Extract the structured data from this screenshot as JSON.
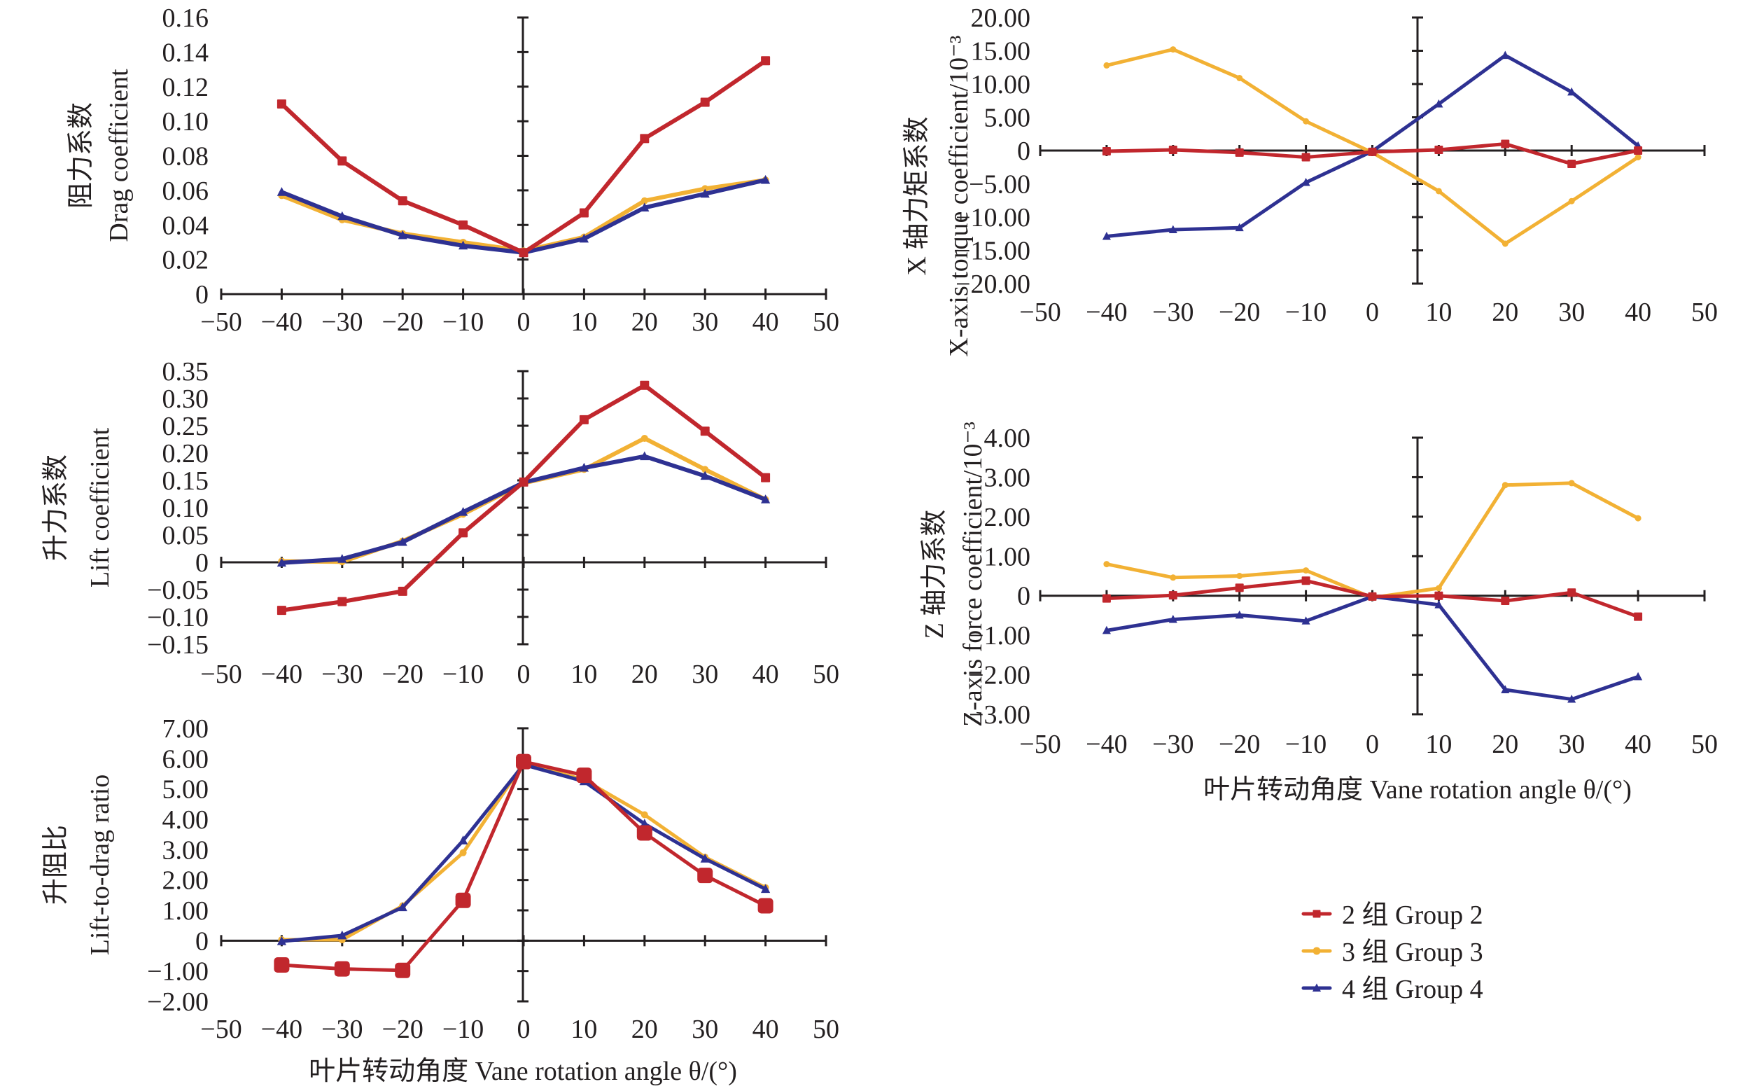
{
  "figure": {
    "x_axis_title": "叶片转动角度 Vane rotation angle θ/(°)",
    "legend": [
      {
        "label": "2 组 Group 2",
        "color": "#c1272d",
        "marker": "square"
      },
      {
        "label": "3 组 Group 3",
        "color": "#f2b134",
        "marker": "circle"
      },
      {
        "label": "4 组 Group 4",
        "color": "#2e3192",
        "marker": "triangle"
      }
    ]
  },
  "chart_data": [
    {
      "id": "drag",
      "type": "line",
      "ylabel_cn": "阻力系数",
      "ylabel_en": "Drag coefficient",
      "xlabel": "叶片转动角度 Vane rotation angle θ/(°)",
      "x": [
        -40,
        -30,
        -20,
        -10,
        0,
        10,
        20,
        30,
        40
      ],
      "xlim": [
        -50,
        50
      ],
      "xticks": [
        "−50",
        "−40",
        "−30",
        "−20",
        "−10",
        "0",
        "10",
        "20",
        "30",
        "40",
        "50"
      ],
      "ylim": [
        0,
        0.16
      ],
      "yticks": [
        0,
        0.02,
        0.04,
        0.06,
        0.08,
        0.1,
        0.12,
        0.14,
        0.16
      ],
      "ytick_labels": [
        "0",
        "0.02",
        "0.04",
        "0.06",
        "0.08",
        "0.10",
        "0.12",
        "0.14",
        "0.16"
      ],
      "series": [
        {
          "name": "2 组 Group 2",
          "values": [
            0.11,
            0.077,
            0.054,
            0.04,
            0.024,
            0.047,
            0.09,
            0.111,
            0.135
          ]
        },
        {
          "name": "3 组 Group 3",
          "values": [
            0.057,
            0.043,
            0.035,
            0.03,
            0.025,
            0.033,
            0.054,
            0.061,
            0.066
          ]
        },
        {
          "name": "4 组 Group 4",
          "values": [
            0.059,
            0.045,
            0.034,
            0.028,
            0.024,
            0.032,
            0.05,
            0.058,
            0.066
          ]
        }
      ],
      "grid": false
    },
    {
      "id": "lift",
      "type": "line",
      "ylabel_cn": "升力系数",
      "ylabel_en": "Lift coefficient",
      "xlabel": "叶片转动角度 Vane rotation angle θ/(°)",
      "x": [
        -40,
        -30,
        -20,
        -10,
        0,
        10,
        20,
        30,
        40
      ],
      "xlim": [
        -50,
        50
      ],
      "xticks": [
        "−50",
        "−40",
        "−30",
        "−20",
        "−10",
        "0",
        "10",
        "20",
        "30",
        "40",
        "50"
      ],
      "ylim": [
        -0.15,
        0.35
      ],
      "yticks": [
        -0.15,
        -0.1,
        -0.05,
        0,
        0.05,
        0.1,
        0.15,
        0.2,
        0.25,
        0.3,
        0.35
      ],
      "ytick_labels": [
        "−0.15",
        "−0.10",
        "−0.05",
        "0",
        "0.05",
        "0.10",
        "0.15",
        "0.20",
        "0.25",
        "0.30",
        "0.35"
      ],
      "series": [
        {
          "name": "2 组 Group 2",
          "values": [
            -0.088,
            -0.072,
            -0.053,
            0.054,
            0.147,
            0.261,
            0.324,
            0.24,
            0.155
          ]
        },
        {
          "name": "3 组 Group 3",
          "values": [
            0.002,
            0.001,
            0.039,
            0.088,
            0.145,
            0.17,
            0.227,
            0.17,
            0.115
          ]
        },
        {
          "name": "4 组 Group 4",
          "values": [
            -0.001,
            0.006,
            0.037,
            0.092,
            0.146,
            0.173,
            0.194,
            0.158,
            0.115
          ]
        }
      ],
      "grid": false
    },
    {
      "id": "lift_to_drag",
      "type": "line",
      "ylabel_cn": "升阻比",
      "ylabel_en": "Lift-to-drag ratio",
      "xlabel": "叶片转动角度 Vane rotation angle θ/(°)",
      "x": [
        -40,
        -30,
        -20,
        -10,
        0,
        10,
        20,
        30,
        40
      ],
      "xlim": [
        -50,
        50
      ],
      "xticks": [
        "−50",
        "−40",
        "−30",
        "−20",
        "−10",
        "0",
        "10",
        "20",
        "30",
        "40",
        "50"
      ],
      "ylim": [
        -2,
        7
      ],
      "yticks": [
        -2,
        -1,
        0,
        1,
        2,
        3,
        4,
        5,
        6,
        7
      ],
      "ytick_labels": [
        "−2.00",
        "−1.00",
        "0",
        "1.00",
        "2.00",
        "3.00",
        "4.00",
        "5.00",
        "6.00",
        "7.00"
      ],
      "series": [
        {
          "name": "2 组 Group 2",
          "values": [
            -0.8,
            -0.93,
            -0.98,
            1.33,
            5.9,
            5.45,
            3.55,
            2.15,
            1.15
          ]
        },
        {
          "name": "3 组 Group 3",
          "values": [
            0.03,
            0.03,
            1.15,
            2.9,
            5.85,
            5.3,
            4.15,
            2.75,
            1.75
          ]
        },
        {
          "name": "4 组 Group 4",
          "values": [
            -0.02,
            0.17,
            1.1,
            3.3,
            5.8,
            5.25,
            3.85,
            2.7,
            1.7
          ]
        }
      ],
      "grid": false
    },
    {
      "id": "x_torque",
      "type": "line",
      "ylabel_cn": "X 轴力矩系数",
      "ylabel_en": "X-axis torque coefficient/10⁻³",
      "xlabel": "叶片转动角度 Vane rotation angle θ/(°)",
      "x": [
        -40,
        -30,
        -20,
        -10,
        0,
        10,
        20,
        30,
        40
      ],
      "xlim": [
        -50,
        50
      ],
      "xticks": [
        "−50",
        "−40",
        "−30",
        "−20",
        "−10",
        "0",
        "10",
        "20",
        "30",
        "40",
        "50"
      ],
      "ylim": [
        -20,
        20
      ],
      "yticks": [
        -20,
        -15,
        -10,
        -5,
        0,
        5,
        10,
        15,
        20
      ],
      "ytick_labels": [
        "−20.00",
        "−15.00",
        "−10.00",
        "−5.00",
        "0",
        "5.00",
        "10.00",
        "15.00",
        "20.00"
      ],
      "series": [
        {
          "name": "2 组 Group 2",
          "values": [
            -0.1,
            0.1,
            -0.3,
            -1.0,
            -0.2,
            0.1,
            1.0,
            -2.0,
            0.0
          ]
        },
        {
          "name": "3 组 Group 3",
          "values": [
            12.8,
            15.2,
            10.9,
            4.4,
            -0.3,
            -6.1,
            -14.0,
            -7.6,
            -1.0
          ]
        },
        {
          "name": "4 组 Group 4",
          "values": [
            -12.9,
            -11.9,
            -11.6,
            -4.8,
            -0.1,
            7.0,
            14.3,
            8.8,
            0.7
          ]
        }
      ],
      "grid": false
    },
    {
      "id": "z_force",
      "type": "line",
      "ylabel_cn": "Z 轴力系数",
      "ylabel_en": "Z-axis force coefficient/10⁻³",
      "xlabel": "叶片转动角度 Vane rotation angle θ/(°)",
      "x": [
        -40,
        -30,
        -20,
        -10,
        0,
        10,
        20,
        30,
        40
      ],
      "xlim": [
        -50,
        50
      ],
      "xticks": [
        "−50",
        "−40",
        "−30",
        "−20",
        "−10",
        "0",
        "10",
        "20",
        "30",
        "40",
        "50"
      ],
      "ylim": [
        -3,
        4
      ],
      "yticks": [
        -3,
        -2,
        -1,
        0,
        1,
        2,
        3,
        4
      ],
      "ytick_labels": [
        "−3.00",
        "−2.00",
        "−1.00",
        "0",
        "1.00",
        "2.00",
        "3.00",
        "4.00"
      ],
      "series": [
        {
          "name": "2 组 Group 2",
          "values": [
            -0.07,
            0.01,
            0.2,
            0.38,
            -0.02,
            0.0,
            -0.13,
            0.08,
            -0.53
          ]
        },
        {
          "name": "3 组 Group 3",
          "values": [
            0.8,
            0.46,
            0.5,
            0.64,
            -0.05,
            0.19,
            2.8,
            2.85,
            1.96
          ]
        },
        {
          "name": "4 组 Group 4",
          "values": [
            -0.88,
            -0.6,
            -0.49,
            -0.64,
            -0.02,
            -0.23,
            -2.38,
            -2.62,
            -2.05
          ]
        }
      ],
      "grid": false
    }
  ]
}
